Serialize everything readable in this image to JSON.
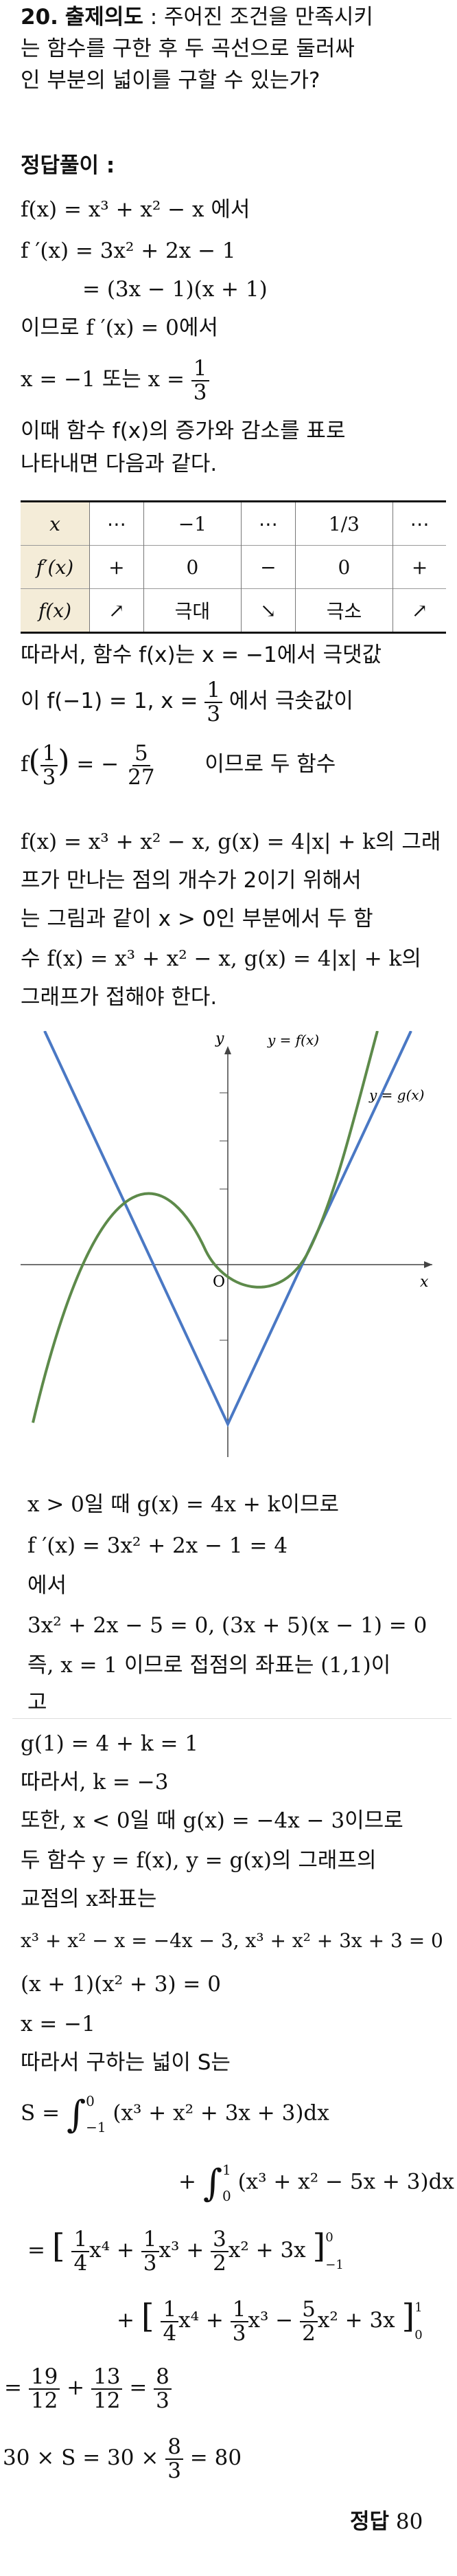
{
  "problem": {
    "number": "20.",
    "intent_label": "출제의도",
    "intent_text_1": ": 주어진 조건을 만족시키",
    "intent_text_2": "는 함수를 구한 후 두 곡선으로 둘러싸",
    "intent_text_3": "인 부분의 넓이를 구할 수 있는가?"
  },
  "solution": {
    "heading": "정답풀이 :",
    "l1": "f(x) = x³ + x² − x 에서",
    "l2": "f ′(x) = 3x² + 2x − 1",
    "l3": "= (3x − 1)(x + 1)",
    "l4": "이므로 f ′(x) = 0에서",
    "l5_a": "x = −1 또는 x =",
    "l5_num": "1",
    "l5_den": "3",
    "l6": "이때 함수 f(x)의 증가와 감소를 표로",
    "l7": "나타내면 다음과 같다.",
    "table": {
      "rows": [
        [
          "x",
          "⋯",
          "−1",
          "⋯",
          "1/3",
          "⋯"
        ],
        [
          "f′(x)",
          "+",
          "0",
          "−",
          "0",
          "+"
        ],
        [
          "f(x)",
          "↗",
          "극대",
          "↘",
          "극소",
          "↗"
        ]
      ]
    },
    "l8": "따라서, 함수 f(x)는 x = −1에서 극댓값",
    "l9_a": "이  f(−1) = 1,  x =",
    "l9_num": "1",
    "l9_den": "3",
    "l9_b": "에서  극솟값이",
    "l10_f": "f",
    "l10_num1": "1",
    "l10_den1": "3",
    "l10_eq": "= −",
    "l10_num2": "5",
    "l10_den2": "27",
    "l10_b": "이므로     두     함수",
    "l11": "f(x) = x³ + x² − x,  g(x) = 4|x| + k의 그래",
    "l12": "프가 만나는 점의 개수가 2이기 위해서",
    "l13": "는 그림과 같이 x > 0인 부분에서 두 함",
    "l14": "수  f(x) = x³ + x² − x,  g(x) = 4|x| + k의",
    "l15": "그래프가 접해야 한다.",
    "graph": {
      "label_y": "y",
      "label_x": "x",
      "label_o": "O",
      "label_f": "y = f(x)",
      "label_g": "y = g(x)"
    },
    "l16": "x > 0일 때  g(x) = 4x + k이므로",
    "l17": "f ′(x) = 3x² + 2x − 1 = 4",
    "l18": "에서",
    "l19": "3x² + 2x − 5 = 0,  (3x + 5)(x − 1) = 0",
    "l20": "즉,  x = 1 이므로 접점의 좌표는 (1,1)이",
    "l21": "고",
    "l22": "g(1) = 4 + k = 1",
    "l23": "따라서,  k = −3",
    "l24": "또한,  x < 0일 때  g(x) = −4x − 3이므로",
    "l25": "두 함수 y = f(x),  y = g(x)의 그래프의",
    "l26": "교점의 x좌표는",
    "l27": "x³ + x² − x = −4x − 3,  x³ + x² + 3x + 3 = 0",
    "l28": "(x + 1)(x² + 3) = 0",
    "l29": "x = −1",
    "l30": "따라서 구하는 넓이 S는",
    "int1_pre": "S =",
    "int1_upper": "0",
    "int1_lower": "−1",
    "int1_body": "(x³ + x² + 3x + 3)dx",
    "int2_upper": "1",
    "int2_lower": "0",
    "int2_body": "(x³ + x² − 5x + 3)dx",
    "br1_pre": "=",
    "br1_body_a": "x⁴ +",
    "br1_body_b": "x³ +",
    "br1_body_c": "x² + 3x",
    "br1_upper": "0",
    "br1_lower": "−1",
    "br2_body_a": "x⁴ +",
    "br2_body_b": "x³ −",
    "br2_body_c": "x² + 3x",
    "br2_upper": "1",
    "br2_lower": "0",
    "frac_1_4": [
      "1",
      "4"
    ],
    "frac_1_3": [
      "1",
      "3"
    ],
    "frac_3_2": [
      "3",
      "2"
    ],
    "frac_5_2": [
      "5",
      "2"
    ],
    "res_eq": "=",
    "res_n1": "19",
    "res_d1": "12",
    "res_plus": "+",
    "res_n2": "13",
    "res_d2": "12",
    "res_eq2": "=",
    "res_n3": "8",
    "res_d3": "3",
    "final_a": "30 × S = 30 ×",
    "final_num": "8",
    "final_den": "3",
    "final_b": "= 80"
  },
  "answer": {
    "label": "정답",
    "value": "80"
  },
  "colors": {
    "f_curve": "#5d8a4a",
    "g_curve": "#4a78c4",
    "table_header_bg": "#f4ecd8"
  }
}
